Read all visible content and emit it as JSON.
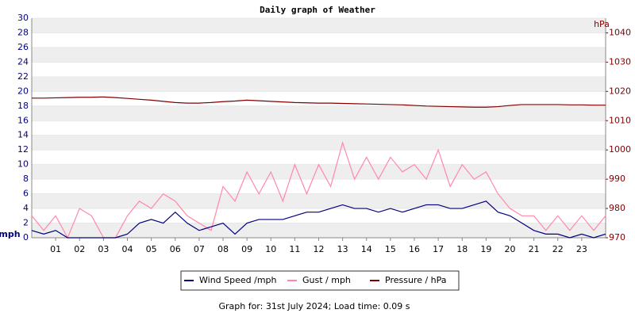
{
  "chart_data": {
    "type": "line",
    "title": "Daily graph of Weather",
    "y_label": "mph",
    "y2_label": "hPa",
    "footer": "Graph for: 31st July 2024; Load time: 0.09 s",
    "x": [
      0,
      0.5,
      1,
      1.5,
      2,
      2.5,
      3,
      3.5,
      4,
      4.5,
      5,
      5.5,
      6,
      6.5,
      7,
      7.5,
      8,
      8.5,
      9,
      9.5,
      10,
      10.5,
      11,
      11.5,
      12,
      12.5,
      13,
      13.5,
      14,
      14.5,
      15,
      15.5,
      16,
      16.5,
      17,
      17.5,
      18,
      18.5,
      19,
      19.5,
      20,
      20.5,
      21,
      21.5,
      22,
      22.5,
      23,
      23.5,
      24
    ],
    "xlim": [
      0,
      24
    ],
    "xticks": [
      {
        "value": 1,
        "label": "01"
      },
      {
        "value": 2,
        "label": "02"
      },
      {
        "value": 3,
        "label": "03"
      },
      {
        "value": 4,
        "label": "04"
      },
      {
        "value": 5,
        "label": "05"
      },
      {
        "value": 6,
        "label": "06"
      },
      {
        "value": 7,
        "label": "07"
      },
      {
        "value": 8,
        "label": "08"
      },
      {
        "value": 9,
        "label": "09"
      },
      10,
      11,
      12,
      13,
      14,
      15,
      16,
      17,
      18,
      19,
      20,
      21,
      22,
      23
    ],
    "ylim": [
      0,
      30
    ],
    "yticks": [
      0,
      2,
      4,
      6,
      8,
      10,
      12,
      14,
      16,
      18,
      20,
      22,
      24,
      26,
      28,
      30
    ],
    "y2lim": [
      970,
      1045
    ],
    "y2ticks": [
      970,
      980,
      990,
      1000,
      1010,
      1020,
      1030,
      1040
    ],
    "grid": true,
    "legend": "bottom",
    "series": [
      {
        "name": "Wind Speed /mph",
        "color": "#000080",
        "values": [
          1,
          0.5,
          1,
          0,
          0,
          0,
          0,
          0,
          0.5,
          2,
          2.5,
          2,
          3.5,
          2,
          1,
          1.5,
          2,
          0.5,
          2,
          2.5,
          2.5,
          2.5,
          3,
          3.5,
          3.5,
          4,
          4.5,
          4,
          4,
          3.5,
          4,
          3.5,
          4,
          4.5,
          4.5,
          4,
          4,
          4.5,
          5,
          3.5,
          3,
          2,
          1,
          0.5,
          0.5,
          0,
          0.5,
          0,
          0.5
        ]
      },
      {
        "name": "Gust / mph",
        "color": "#ff88aa",
        "values": [
          3,
          1,
          3,
          0,
          4,
          3,
          0,
          0,
          3,
          5,
          4,
          6,
          5,
          3,
          2,
          1,
          7,
          5,
          9,
          6,
          9,
          5,
          10,
          6,
          10,
          7,
          13,
          8,
          11,
          8,
          11,
          9,
          10,
          8,
          12,
          7,
          10,
          8,
          9,
          6,
          4,
          3,
          3,
          1,
          3,
          1,
          3,
          1,
          3
        ]
      },
      {
        "name": "Pressure / hPa",
        "color": "#800000",
        "axis": "y2",
        "values": [
          1017.7,
          1017.7,
          1017.8,
          1017.9,
          1018,
          1018,
          1018.1,
          1017.9,
          1017.6,
          1017.3,
          1017,
          1016.6,
          1016.2,
          1016,
          1016,
          1016.2,
          1016.5,
          1016.7,
          1017,
          1016.8,
          1016.6,
          1016.4,
          1016.2,
          1016.1,
          1016,
          1016,
          1015.9,
          1015.8,
          1015.7,
          1015.6,
          1015.5,
          1015.4,
          1015.2,
          1015,
          1014.9,
          1014.8,
          1014.7,
          1014.6,
          1014.6,
          1014.8,
          1015.2,
          1015.5,
          1015.5,
          1015.5,
          1015.5,
          1015.4,
          1015.4,
          1015.3,
          1015.3
        ]
      }
    ]
  }
}
